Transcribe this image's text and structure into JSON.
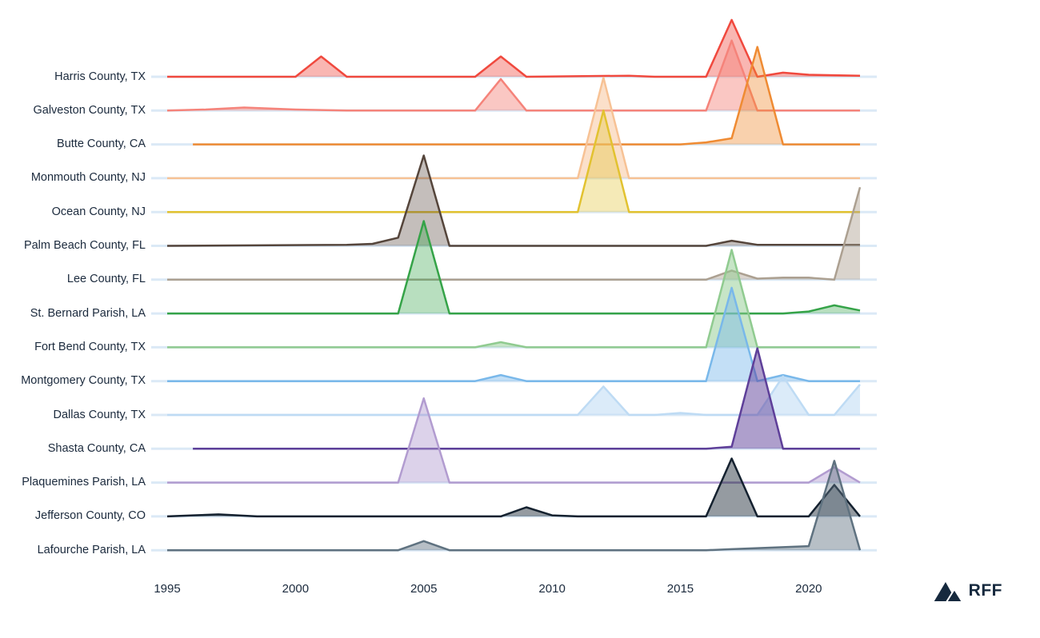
{
  "page": {
    "background": "#ffffff"
  },
  "logo": {
    "text": "RFF",
    "color": "#16293e",
    "icon": "mountains-icon"
  },
  "chart_data": {
    "type": "area",
    "subtype": "ridgeline",
    "title": "",
    "xlabel": "",
    "ylabel": "",
    "note": "Ridgeline (joy) plot of disaster-event intensity by county over time; y-values are relative amplitudes (unlabeled axis), 1.0 = tallest peak",
    "x_axis": {
      "ticks": [
        "1995",
        "2000",
        "2005",
        "2010",
        "2015",
        "2020"
      ],
      "tick_years": [
        1995,
        2000,
        2005,
        2010,
        2015,
        2020
      ],
      "range": [
        1995,
        2022
      ],
      "grid": false
    },
    "y_axis": {
      "categories_top_to_bottom": true,
      "range": [
        0,
        1
      ]
    },
    "guide_line_color": "#dbe9f6",
    "label_color": "#1b2a3d",
    "legend": "none",
    "series": [
      {
        "name": "Harris County, TX",
        "color": "#f0493e",
        "fill_opacity": 0.4,
        "points": [
          [
            1995,
            0
          ],
          [
            2000,
            0
          ],
          [
            2001,
            0.2
          ],
          [
            2002,
            0
          ],
          [
            2007,
            0
          ],
          [
            2008,
            0.2
          ],
          [
            2009,
            0
          ],
          [
            2013,
            0.01
          ],
          [
            2014,
            0
          ],
          [
            2016,
            0
          ],
          [
            2017,
            0.56
          ],
          [
            2018,
            0
          ],
          [
            2019,
            0.04
          ],
          [
            2020,
            0.02
          ],
          [
            2022,
            0.01
          ]
        ]
      },
      {
        "name": "Galveston County, TX",
        "color": "#f5837a",
        "fill_opacity": 0.45,
        "points": [
          [
            1995,
            0
          ],
          [
            1996.5,
            0.01
          ],
          [
            1998,
            0.03
          ],
          [
            2000,
            0.01
          ],
          [
            2002,
            0
          ],
          [
            2007,
            0
          ],
          [
            2008,
            0.31
          ],
          [
            2009,
            0
          ],
          [
            2016,
            0
          ],
          [
            2017,
            0.69
          ],
          [
            2018,
            0
          ],
          [
            2022,
            0
          ]
        ]
      },
      {
        "name": "Butte County, CA",
        "color": "#ef8b33",
        "fill_opacity": 0.4,
        "points": [
          [
            1996,
            0
          ],
          [
            2015,
            0
          ],
          [
            2016,
            0.02
          ],
          [
            2017,
            0.06
          ],
          [
            2018,
            0.96
          ],
          [
            2019,
            0
          ],
          [
            2022,
            0
          ]
        ]
      },
      {
        "name": "Monmouth County, NJ",
        "color": "#f7c295",
        "fill_opacity": 0.5,
        "points": [
          [
            1995,
            0
          ],
          [
            2011,
            0
          ],
          [
            2012,
            0.99
          ],
          [
            2013,
            0
          ],
          [
            2022,
            0
          ]
        ]
      },
      {
        "name": "Ocean County, NJ",
        "color": "#e2c230",
        "fill_opacity": 0.35,
        "points": [
          [
            1995,
            0
          ],
          [
            2011,
            0
          ],
          [
            2012,
            1.0
          ],
          [
            2013,
            0
          ],
          [
            2022,
            0
          ]
        ]
      },
      {
        "name": "Palm Beach County, FL",
        "color": "#55453b",
        "fill_opacity": 0.35,
        "points": [
          [
            1995,
            0
          ],
          [
            2002,
            0.01
          ],
          [
            2003,
            0.02
          ],
          [
            2004,
            0.08
          ],
          [
            2005,
            0.89
          ],
          [
            2006,
            0
          ],
          [
            2016,
            0
          ],
          [
            2017,
            0.05
          ],
          [
            2018,
            0.01
          ],
          [
            2022,
            0.01
          ]
        ]
      },
      {
        "name": "Lee County, FL",
        "color": "#aca091",
        "fill_opacity": 0.45,
        "points": [
          [
            1995,
            0
          ],
          [
            2016,
            0
          ],
          [
            2017,
            0.09
          ],
          [
            2018,
            0.01
          ],
          [
            2019,
            0.02
          ],
          [
            2020,
            0.02
          ],
          [
            2021,
            0
          ],
          [
            2022,
            0.91
          ]
        ]
      },
      {
        "name": "St. Bernard Parish, LA",
        "color": "#35a348",
        "fill_opacity": 0.35,
        "points": [
          [
            1995,
            0
          ],
          [
            2004,
            0
          ],
          [
            2005,
            0.91
          ],
          [
            2006,
            0
          ],
          [
            2019,
            0
          ],
          [
            2020,
            0.02
          ],
          [
            2021,
            0.08
          ],
          [
            2022,
            0.03
          ]
        ]
      },
      {
        "name": "Fort Bend County, TX",
        "color": "#90cb90",
        "fill_opacity": 0.5,
        "points": [
          [
            1995,
            0
          ],
          [
            2007,
            0
          ],
          [
            2008,
            0.05
          ],
          [
            2009,
            0
          ],
          [
            2016,
            0
          ],
          [
            2017,
            0.96
          ],
          [
            2018,
            0
          ],
          [
            2022,
            0
          ]
        ]
      },
      {
        "name": "Montgomery County, TX",
        "color": "#79b8ea",
        "fill_opacity": 0.45,
        "points": [
          [
            1995,
            0
          ],
          [
            2007,
            0
          ],
          [
            2008,
            0.06
          ],
          [
            2009,
            0
          ],
          [
            2016,
            0
          ],
          [
            2017,
            0.92
          ],
          [
            2018,
            0
          ],
          [
            2019,
            0.06
          ],
          [
            2020,
            0
          ],
          [
            2022,
            0
          ]
        ]
      },
      {
        "name": "Dallas County, TX",
        "color": "#bedbf4",
        "fill_opacity": 0.55,
        "points": [
          [
            1995,
            0
          ],
          [
            2011,
            0
          ],
          [
            2012,
            0.28
          ],
          [
            2013,
            0
          ],
          [
            2014,
            0
          ],
          [
            2015,
            0.02
          ],
          [
            2016,
            0
          ],
          [
            2018,
            0
          ],
          [
            2019,
            0.38
          ],
          [
            2020,
            0
          ],
          [
            2021,
            0
          ],
          [
            2022,
            0.3
          ]
        ]
      },
      {
        "name": "Shasta County, CA",
        "color": "#5e3f99",
        "fill_opacity": 0.5,
        "points": [
          [
            1996,
            0
          ],
          [
            2016,
            0
          ],
          [
            2017,
            0.02
          ],
          [
            2018,
            0.99
          ],
          [
            2019,
            0
          ],
          [
            2022,
            0
          ]
        ]
      },
      {
        "name": "Plaquemines Parish, LA",
        "color": "#b29cd0",
        "fill_opacity": 0.45,
        "points": [
          [
            1995,
            0
          ],
          [
            2004,
            0
          ],
          [
            2005,
            0.83
          ],
          [
            2006,
            0
          ],
          [
            2020,
            0
          ],
          [
            2021,
            0.15
          ],
          [
            2022,
            0
          ]
        ]
      },
      {
        "name": "Jefferson County, CO",
        "color": "#14212f",
        "fill_opacity": 0.45,
        "points": [
          [
            1995,
            0
          ],
          [
            1996,
            0.01
          ],
          [
            1997,
            0.02
          ],
          [
            1998.5,
            0
          ],
          [
            2008,
            0
          ],
          [
            2009,
            0.09
          ],
          [
            2010,
            0.01
          ],
          [
            2011,
            0
          ],
          [
            2016,
            0
          ],
          [
            2017,
            0.57
          ],
          [
            2018,
            0
          ],
          [
            2020,
            0
          ],
          [
            2021,
            0.31
          ],
          [
            2022,
            0
          ]
        ]
      },
      {
        "name": "Lafourche Parish, LA",
        "color": "#5f7280",
        "fill_opacity": 0.45,
        "points": [
          [
            1995,
            0
          ],
          [
            2004,
            0
          ],
          [
            2005,
            0.09
          ],
          [
            2006,
            0
          ],
          [
            2016,
            0
          ],
          [
            2017,
            0.01
          ],
          [
            2019,
            0.03
          ],
          [
            2020,
            0.04
          ],
          [
            2021,
            0.88
          ],
          [
            2022,
            0
          ]
        ]
      }
    ]
  }
}
